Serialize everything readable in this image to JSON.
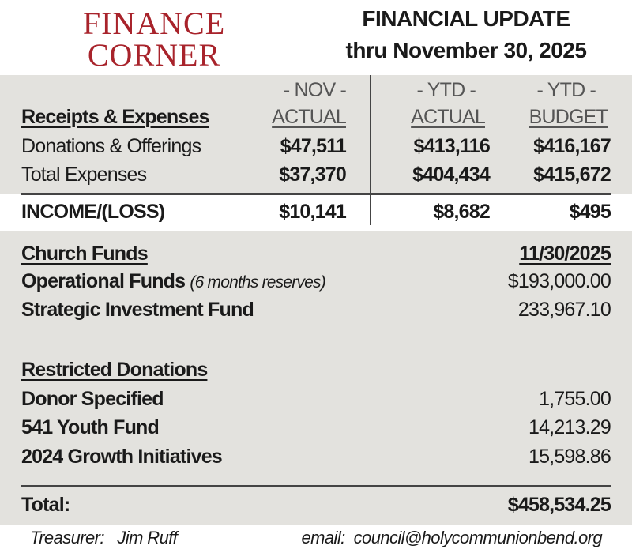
{
  "logo": {
    "line1": "FINANCE",
    "line2": "CORNER"
  },
  "header": {
    "title": "FINANCIAL UPDATE",
    "subtitle": "thru November 30, 2025"
  },
  "colors": {
    "logo": "#a8232b",
    "band": "#e3e2de"
  },
  "summary": {
    "section_label": "Receipts & Expenses",
    "columns": [
      {
        "top": "- NOV -",
        "bottom": "ACTUAL"
      },
      {
        "top": "- YTD -",
        "bottom": "ACTUAL"
      },
      {
        "top": "- YTD -",
        "bottom": "BUDGET"
      }
    ],
    "rows": [
      {
        "label": "Donations & Offerings",
        "values": [
          "$47,511",
          "$413,116",
          "$416,167"
        ]
      },
      {
        "label": "Total Expenses",
        "values": [
          "$37,370",
          "$404,434",
          "$415,672"
        ]
      }
    ],
    "income": {
      "label": "INCOME/(LOSS)",
      "values": [
        "$10,141",
        "$8,682",
        "$495"
      ]
    }
  },
  "funds": {
    "section_label": "Church Funds",
    "date": "11/30/2025",
    "rows": [
      {
        "label": "Operational Funds",
        "note": "(6 months reserves)",
        "value": "$193,000.00"
      },
      {
        "label": "Strategic Investment Fund",
        "value": "233,967.10"
      }
    ]
  },
  "restricted": {
    "section_label": "Restricted Donations",
    "rows": [
      {
        "label": "Donor Specified",
        "value": "1,755.00"
      },
      {
        "label": "541 Youth Fund",
        "value": "14,213.29"
      },
      {
        "label": "2024 Growth Initiatives",
        "value": "15,598.86"
      }
    ]
  },
  "total": {
    "label": "Total:",
    "value": "$458,534.25"
  },
  "footer": {
    "treasurer": "Treasurer:   Jim Ruff",
    "email": "email:  council@holycommunionbend.org"
  }
}
